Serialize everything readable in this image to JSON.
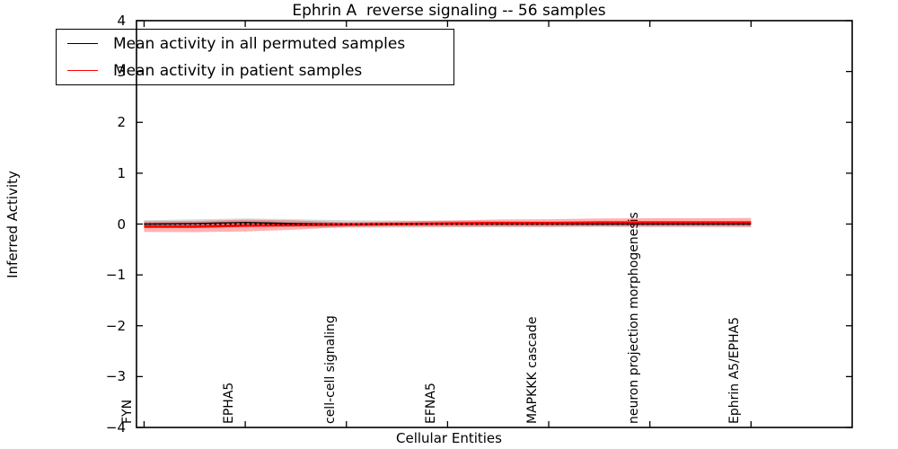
{
  "chart_data": {
    "type": "line",
    "title": "Ephrin A  reverse signaling -- 56 samples",
    "xlabel": "Cellular Entities",
    "ylabel": "Inferred Activity",
    "xlim": [
      -1.5,
      140
    ],
    "ylim": [
      -4,
      4
    ],
    "grid": false,
    "legend_position": "upper left",
    "legend_frame": "transparent",
    "n_entities": 121,
    "categories": [
      "FYN",
      "EPHA5",
      "cell-cell signaling",
      "EFNA5",
      "MAPKKK cascade",
      "neuron projection morphogenesis",
      "Ephrin A5/EPHA5"
    ],
    "category_positions": [
      0,
      20,
      40,
      60,
      80,
      100,
      120
    ],
    "y_tick_values": [
      4,
      3,
      2,
      1,
      0,
      -1,
      -2,
      -3,
      -4
    ],
    "y_tick_labels": [
      "4",
      "3",
      "2",
      "1",
      "0",
      "−1",
      "−2",
      "−3",
      "−4"
    ],
    "series": [
      {
        "name": "Mean activity in all permuted samples",
        "color": "#000000",
        "style": "solid",
        "x": [
          0,
          10,
          15,
          20,
          25,
          30,
          40,
          50,
          60,
          70,
          80,
          90,
          100,
          110,
          120
        ],
        "y": [
          0,
          0.01,
          0.02,
          0.03,
          0.02,
          0.01,
          0,
          0,
          0,
          0,
          0,
          0,
          0,
          0,
          0
        ]
      },
      {
        "name": "Mean activity in patient samples",
        "color": "#ff0000",
        "style": "solid",
        "x": [
          0,
          10,
          20,
          30,
          40,
          50,
          60,
          70,
          80,
          90,
          100,
          110,
          120
        ],
        "y": [
          -0.05,
          -0.05,
          -0.03,
          -0.02,
          -0.01,
          0,
          0.01,
          0.02,
          0.02,
          0.03,
          0.03,
          0.03,
          0.03
        ]
      }
    ],
    "bands": [
      {
        "name": "permuted samples std band",
        "color": "#000000",
        "opacity": 0.15,
        "x": [
          0,
          20,
          40,
          60,
          80,
          100,
          120
        ],
        "upper": [
          0.075,
          0.11,
          0.075,
          0.065,
          0.055,
          0.05,
          0.05
        ],
        "lower": [
          -0.075,
          -0.05,
          -0.075,
          -0.065,
          -0.055,
          -0.05,
          -0.05
        ]
      },
      {
        "name": "patient samples std band",
        "color": "#ff0000",
        "opacity": 0.3,
        "x": [
          0,
          10,
          20,
          30,
          40,
          50,
          60,
          70,
          80,
          90,
          100,
          110,
          120
        ],
        "upper": [
          0.055,
          0.06,
          0.085,
          0.07,
          0.035,
          0.05,
          0.07,
          0.09,
          0.095,
          0.11,
          0.115,
          0.115,
          0.12
        ],
        "lower": [
          -0.155,
          -0.16,
          -0.145,
          -0.11,
          -0.055,
          -0.05,
          -0.05,
          -0.05,
          -0.055,
          -0.05,
          -0.055,
          -0.055,
          -0.06
        ]
      }
    ],
    "zero_line": {
      "y": 0,
      "color": "#000000",
      "style": "dotted"
    }
  }
}
